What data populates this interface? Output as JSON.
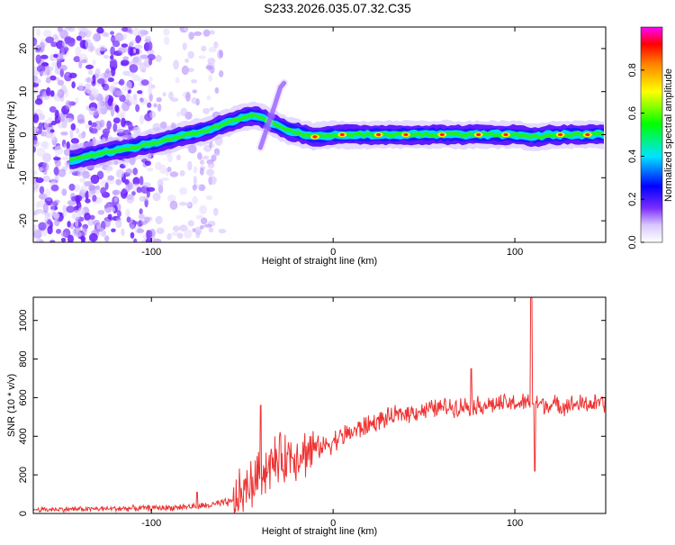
{
  "title": "S233.2026.035.07.32.C35",
  "colors": {
    "snr_line": "#ee3333",
    "frame": "#000000",
    "ridge_low": "#7a2cff"
  },
  "chart_data": [
    {
      "type": "heatmap",
      "name": "spectrogram",
      "xlabel": "Height of straight line (km)",
      "ylabel": "Frequency (Hz)",
      "xlim": [
        -165,
        150
      ],
      "ylim": [
        -25,
        25
      ],
      "xticks": [
        -100,
        0,
        100
      ],
      "yticks": [
        -20,
        -10,
        0,
        10,
        20
      ],
      "colorbar": {
        "label": "Normalized spectral amplitude",
        "range": [
          0,
          1
        ],
        "ticks": [
          "0.0",
          "0.2",
          "0.4",
          "0.6",
          "0.8"
        ],
        "tick_values": [
          0,
          0.2,
          0.4,
          0.6,
          0.8
        ]
      },
      "ridge": {
        "x": [
          -145,
          -135,
          -125,
          -110,
          -100,
          -90,
          -80,
          -70,
          -60,
          -50,
          -42,
          -35,
          -30,
          -25,
          -20,
          -15,
          -10,
          0,
          20,
          40,
          60,
          80,
          100,
          110,
          120,
          140,
          150
        ],
        "y": [
          -6,
          -5,
          -4,
          -3,
          -2,
          -1,
          0,
          1,
          2.5,
          4,
          4.5,
          3,
          2,
          1,
          0.5,
          0,
          -0.5,
          0,
          0,
          0,
          0,
          0,
          0,
          -0.5,
          0,
          0,
          0
        ]
      },
      "hotspots": [
        -10,
        5,
        25,
        40,
        60,
        80,
        95,
        125,
        140
      ]
    },
    {
      "type": "line",
      "name": "snr",
      "xlabel": "Height of straight line (km)",
      "ylabel": "SNR (10 * v/v)",
      "xlim": [
        -165,
        150
      ],
      "ylim": [
        0,
        1120
      ],
      "xticks": [
        -100,
        0,
        100
      ],
      "yticks": [
        0,
        200,
        400,
        600,
        800,
        1000
      ],
      "trend": {
        "x": [
          -165,
          -120,
          -90,
          -70,
          -55,
          -45,
          -35,
          -25,
          -15,
          -5,
          5,
          15,
          25,
          40,
          60,
          80,
          100,
          110,
          120,
          150
        ],
        "y": [
          20,
          25,
          30,
          40,
          60,
          150,
          250,
          300,
          320,
          350,
          400,
          440,
          480,
          520,
          550,
          560,
          570,
          575,
          560,
          570
        ]
      },
      "spikes": [
        {
          "x": -75,
          "y": 110
        },
        {
          "x": -40,
          "y": 560
        },
        {
          "x": 76,
          "y": 750
        },
        {
          "x": 109,
          "y": 1120
        },
        {
          "x": 111,
          "y": 220
        }
      ]
    }
  ]
}
